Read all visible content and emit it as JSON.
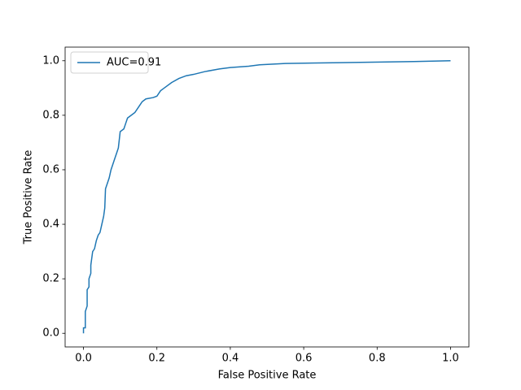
{
  "chart_data": {
    "type": "line",
    "xlabel": "False Positive Rate",
    "ylabel": "True Positive Rate",
    "x": [
      0,
      0,
      0.005,
      0.005,
      0.01,
      0.01,
      0.015,
      0.015,
      0.02,
      0.02,
      0.025,
      0.03,
      0.035,
      0.04,
      0.045,
      0.05,
      0.055,
      0.058,
      0.06,
      0.065,
      0.07,
      0.075,
      0.08,
      0.085,
      0.09,
      0.095,
      0.1,
      0.11,
      0.115,
      0.12,
      0.13,
      0.14,
      0.15,
      0.16,
      0.17,
      0.19,
      0.2,
      0.21,
      0.22,
      0.24,
      0.26,
      0.28,
      0.3,
      0.33,
      0.37,
      0.4,
      0.45,
      0.48,
      0.55,
      0.7,
      0.9,
      1.0
    ],
    "series": [
      {
        "name": "AUC=0.91",
        "color": "#1f77b4",
        "values": [
          0,
          0.02,
          0.02,
          0.08,
          0.1,
          0.16,
          0.17,
          0.2,
          0.22,
          0.25,
          0.3,
          0.31,
          0.34,
          0.36,
          0.37,
          0.4,
          0.43,
          0.46,
          0.53,
          0.55,
          0.57,
          0.6,
          0.62,
          0.64,
          0.66,
          0.68,
          0.74,
          0.75,
          0.77,
          0.79,
          0.8,
          0.81,
          0.83,
          0.85,
          0.86,
          0.865,
          0.87,
          0.89,
          0.9,
          0.92,
          0.935,
          0.945,
          0.95,
          0.96,
          0.97,
          0.975,
          0.98,
          0.985,
          0.99,
          0.993,
          0.997,
          1.0
        ]
      }
    ],
    "xlim": [
      -0.05,
      1.05
    ],
    "ylim": [
      -0.05,
      1.05
    ],
    "xticks": [
      {
        "value": 0,
        "label": "0.0"
      },
      {
        "value": 0.2,
        "label": "0.2"
      },
      {
        "value": 0.4,
        "label": "0.4"
      },
      {
        "value": 0.6,
        "label": "0.6"
      },
      {
        "value": 0.8,
        "label": "0.8"
      },
      {
        "value": 1,
        "label": "1.0"
      }
    ],
    "yticks": [
      {
        "value": 0,
        "label": "0.0"
      },
      {
        "value": 0.2,
        "label": "0.2"
      },
      {
        "value": 0.4,
        "label": "0.4"
      },
      {
        "value": 0.6,
        "label": "0.6"
      },
      {
        "value": 0.8,
        "label": "0.8"
      },
      {
        "value": 1,
        "label": "1.0"
      }
    ],
    "legend": "upper left",
    "grid": false
  }
}
